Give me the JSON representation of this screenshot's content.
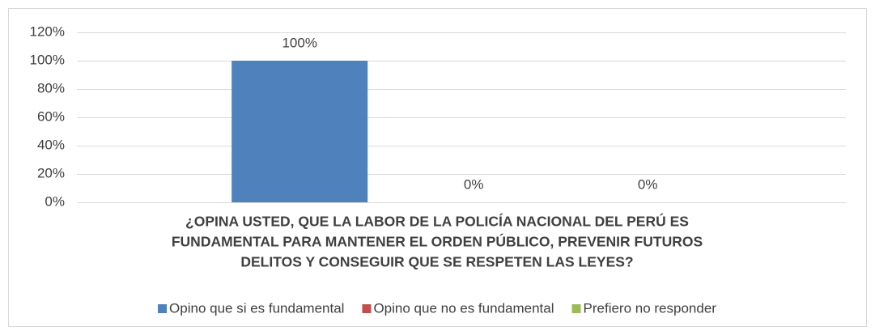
{
  "chart_data": {
    "type": "bar",
    "categories": [
      null
    ],
    "xlabel": [
      "¿OPINA USTED, QUE LA LABOR DE LA POLICÍA NACIONAL DEL PERÚ ES",
      "FUNDAMENTAL PARA MANTENER EL ORDEN PÚBLICO, PREVENIR FUTUROS",
      "DELITOS Y CONSEGUIR QUE SE RESPETEN LAS LEYES?"
    ],
    "series": [
      {
        "name": "Opino que si es fundamental",
        "color": "#4f81bd",
        "values": [
          100
        ],
        "value_labels": [
          "100%"
        ]
      },
      {
        "name": "Opino que no es fundamental",
        "color": "#c0504d",
        "values": [
          0
        ],
        "value_labels": [
          "0%"
        ]
      },
      {
        "name": "Prefiero no responder",
        "color": "#9bbb59",
        "values": [
          0
        ],
        "value_labels": [
          "0%"
        ]
      }
    ],
    "ylim": [
      0,
      120
    ],
    "yticks": [
      {
        "value": 0,
        "label": "0%"
      },
      {
        "value": 20,
        "label": "20%"
      },
      {
        "value": 40,
        "label": "40%"
      },
      {
        "value": 60,
        "label": "60%"
      },
      {
        "value": 80,
        "label": "80%"
      },
      {
        "value": 100,
        "label": "100%"
      },
      {
        "value": 120,
        "label": "120%"
      }
    ],
    "grid": true,
    "legend": "bottom"
  }
}
